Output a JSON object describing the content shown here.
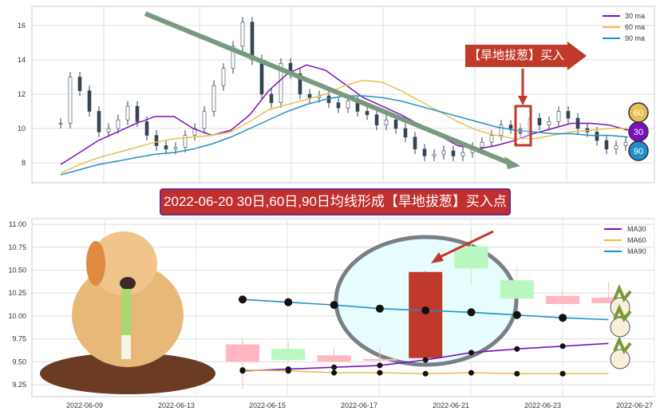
{
  "top_chart": {
    "legend": [
      "30 ma",
      "60 ma",
      "90 ma"
    ],
    "colors": {
      "ma30": "#7a10c0",
      "ma60": "#e8c050",
      "ma90": "#2090c8"
    },
    "callout": "【旱地拔葱】买入点",
    "badges": [
      "60",
      "30",
      "90"
    ]
  },
  "banner": "2022-06-20 30日,60日,90日均线形成【旱地拔葱】买入点",
  "chart_data": [
    {
      "type": "candlestick+line",
      "title": "",
      "ylim": [
        7,
        17
      ],
      "yticks": [
        "8",
        "10",
        "12",
        "14",
        "16"
      ],
      "close": [
        10.3,
        13.0,
        12.2,
        11.0,
        9.8,
        10.0,
        10.5,
        11.3,
        10.4,
        9.6,
        9.0,
        8.8,
        8.9,
        9.6,
        10.0,
        11.0,
        12.5,
        13.5,
        14.8,
        16.2,
        14.0,
        12.0,
        11.5,
        13.8,
        13.2,
        12.0,
        11.8,
        11.9,
        11.5,
        11.2,
        11.6,
        11.0,
        10.8,
        10.2,
        10.5,
        10.0,
        9.5,
        8.8,
        8.4,
        8.5,
        8.7,
        8.4,
        8.6,
        8.9,
        9.2,
        9.6,
        10.2,
        10.0,
        9.7,
        10.6,
        10.2,
        10.4,
        11.0,
        10.6,
        10.0,
        9.8,
        9.3,
        8.8,
        9.0,
        9.2
      ],
      "series": [
        {
          "name": "30 ma",
          "values": [
            7.9,
            8.6,
            9.3,
            9.8,
            10.3,
            10.7,
            10.7,
            10.0,
            9.6,
            9.9,
            10.8,
            12.2,
            13.2,
            13.7,
            13.4,
            12.6,
            11.8,
            11.3,
            10.8,
            10.2,
            9.6,
            9.0,
            8.8,
            9.0,
            9.3,
            9.7,
            10.0,
            10.3,
            10.3,
            10.2,
            9.9
          ]
        },
        {
          "name": "60 ma",
          "values": [
            7.4,
            7.9,
            8.3,
            8.6,
            8.9,
            9.2,
            9.4,
            9.5,
            9.6,
            9.8,
            10.4,
            11.1,
            11.4,
            11.7,
            12.0,
            12.5,
            12.8,
            12.7,
            12.2,
            11.6,
            11.0,
            10.4,
            9.9,
            9.6,
            9.4,
            9.4,
            9.6,
            9.8,
            9.9,
            10.0,
            10.0
          ]
        },
        {
          "name": "90 ma",
          "values": [
            7.3,
            7.6,
            7.9,
            8.1,
            8.3,
            8.5,
            8.6,
            8.8,
            9.1,
            9.5,
            10.0,
            10.5,
            11.0,
            11.4,
            11.7,
            11.9,
            11.9,
            11.8,
            11.6,
            11.3,
            11.0,
            10.7,
            10.4,
            10.1,
            9.9,
            9.8,
            9.7,
            9.7,
            9.6,
            9.6,
            9.5
          ]
        }
      ]
    },
    {
      "type": "candlestick+line",
      "ylim": [
        9.15,
        11.05
      ],
      "yticks": [
        "11.00",
        "10.75",
        "10.50",
        "10.25",
        "10.00",
        "9.75",
        "9.50",
        "9.25"
      ],
      "xticks": [
        "2022-06-09",
        "2022-06-13",
        "2022-06-15",
        "2022-06-17",
        "2022-06-21",
        "2022-06-23",
        "2022-06-27"
      ],
      "legend": [
        "MA30",
        "MA60",
        "MA90"
      ],
      "candles": [
        [
          9.5,
          9.69,
          9.76,
          9.2
        ],
        [
          9.64,
          9.52,
          9.74,
          9.5
        ],
        [
          9.5,
          9.57,
          9.65,
          9.5
        ],
        [
          9.52,
          9.53,
          9.65,
          9.5
        ],
        [
          9.54,
          10.48,
          10.49,
          9.52
        ],
        [
          10.76,
          10.52,
          10.95,
          10.33
        ],
        [
          10.39,
          10.19,
          10.55,
          10.19
        ],
        [
          10.13,
          10.22,
          10.28,
          10.13
        ],
        [
          10.14,
          10.2,
          10.37,
          10.14
        ]
      ],
      "ma30": [
        9.4,
        9.42,
        9.44,
        9.46,
        9.52,
        9.6,
        9.64,
        9.67,
        9.7
      ],
      "ma60": [
        9.41,
        9.4,
        9.38,
        9.38,
        9.37,
        9.38,
        9.37,
        9.37,
        9.37
      ],
      "ma90": [
        10.18,
        10.15,
        10.12,
        10.08,
        10.06,
        10.04,
        10.01,
        9.98,
        9.96
      ]
    }
  ]
}
